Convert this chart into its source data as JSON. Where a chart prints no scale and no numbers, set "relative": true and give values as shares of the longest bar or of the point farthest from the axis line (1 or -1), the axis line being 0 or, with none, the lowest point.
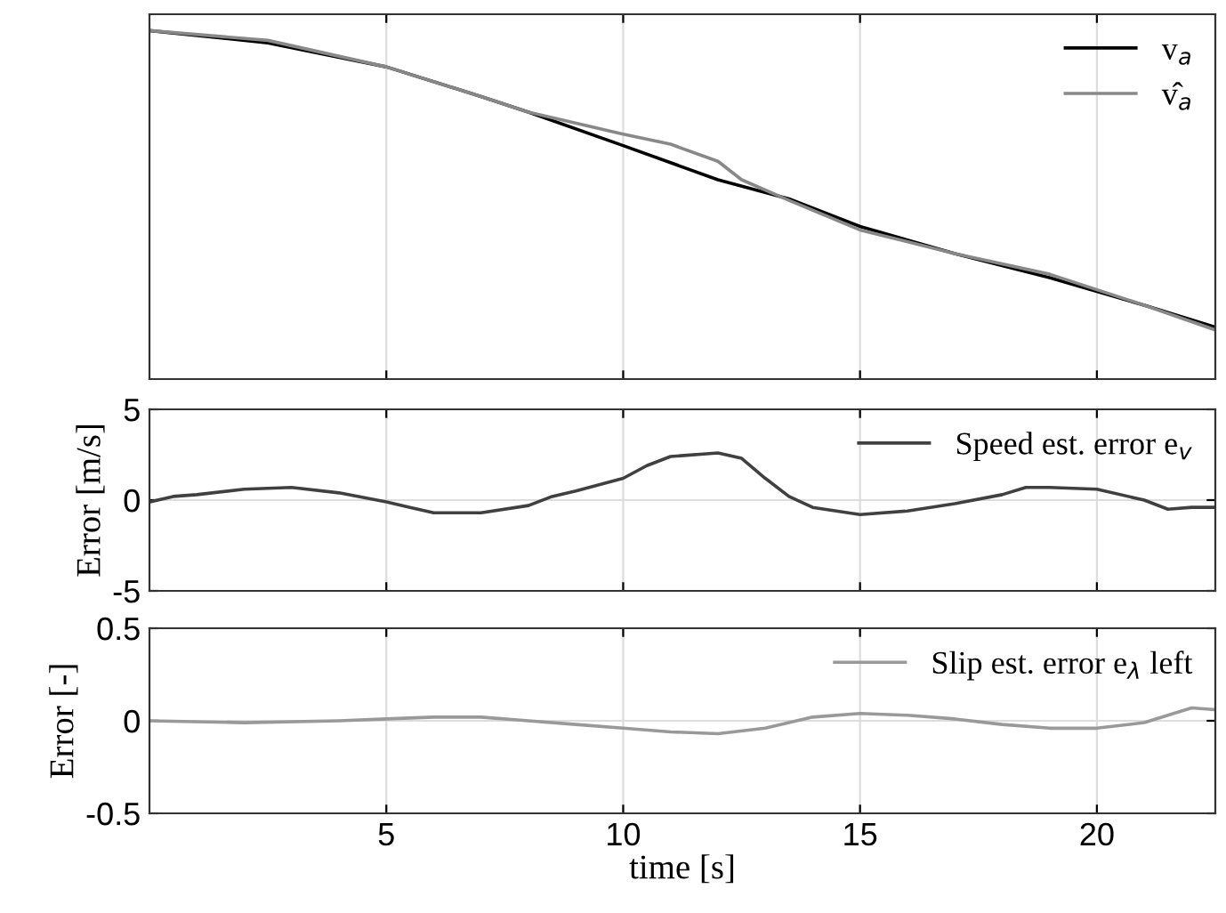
{
  "chart_data": [
    {
      "type": "line",
      "relative": true,
      "tick_labels": false,
      "grid": "x",
      "legend": "top right",
      "xlim": [
        0,
        22.5
      ],
      "xticks": [
        5,
        10,
        15,
        20
      ],
      "series": [
        {
          "name": "v$_{a}$",
          "color": "#000000",
          "x": [
            0,
            2.5,
            5,
            7,
            8,
            10,
            12,
            13.5,
            15,
            17,
            19,
            21,
            22.5
          ],
          "values": [
            1.0,
            0.965,
            0.896,
            0.811,
            0.766,
            0.67,
            0.572,
            0.517,
            0.438,
            0.36,
            0.291,
            0.212,
            0.149
          ]
        },
        {
          "name": "v̂$_{a}$",
          "color": "#888888",
          "x": [
            0,
            2.5,
            5,
            7,
            8,
            10,
            11,
            12,
            12.5,
            13.5,
            15,
            17,
            19,
            21,
            22.5
          ],
          "values": [
            1.0,
            0.972,
            0.896,
            0.811,
            0.766,
            0.703,
            0.674,
            0.625,
            0.572,
            0.513,
            0.428,
            0.36,
            0.301,
            0.212,
            0.141
          ]
        }
      ]
    },
    {
      "type": "line",
      "ylabel": "Error [m/s]",
      "tick_labels": "y",
      "grid": true,
      "legend": "top right",
      "xlim": [
        0,
        22.5
      ],
      "xticks": [
        5,
        10,
        15,
        20
      ],
      "ylim": [
        -5,
        5
      ],
      "yticks": [
        -5,
        0,
        5
      ],
      "series": [
        {
          "name": "Speed est. error e$_{v}$",
          "color": "#404040",
          "x": [
            0,
            0.5,
            1,
            2,
            3,
            4,
            5,
            5.5,
            6,
            7,
            8,
            8.5,
            9,
            10,
            10.5,
            11,
            12,
            12.5,
            13,
            13.5,
            14,
            15,
            16,
            17,
            18,
            18.5,
            19,
            20,
            21,
            21.5,
            22,
            22.5
          ],
          "values": [
            -0.1,
            0.2,
            0.3,
            0.6,
            0.7,
            0.4,
            -0.1,
            -0.4,
            -0.7,
            -0.7,
            -0.3,
            0.2,
            0.5,
            1.2,
            1.9,
            2.4,
            2.6,
            2.3,
            1.2,
            0.2,
            -0.4,
            -0.8,
            -0.6,
            -0.2,
            0.3,
            0.7,
            0.7,
            0.6,
            0.0,
            -0.5,
            -0.4,
            -0.4
          ]
        }
      ]
    },
    {
      "type": "line",
      "xlabel": "time [s]",
      "ylabel": "Error [-]",
      "grid": true,
      "legend": "top right",
      "xlim": [
        0,
        22.5
      ],
      "xticks": [
        5,
        10,
        15,
        20
      ],
      "ylim": [
        -0.5,
        0.5
      ],
      "yticks": [
        -0.5,
        0,
        0.5
      ],
      "series": [
        {
          "name": "Slip est. error e$_{λ}$ left",
          "color": "#999999",
          "x": [
            0,
            2,
            4,
            5,
            6,
            7,
            8,
            9,
            10,
            11,
            12,
            13,
            14,
            15,
            16,
            17,
            18,
            19,
            20,
            21,
            22,
            22.5
          ],
          "values": [
            0.0,
            -0.01,
            0.0,
            0.01,
            0.02,
            0.02,
            0.0,
            -0.02,
            -0.04,
            -0.06,
            -0.07,
            -0.04,
            0.02,
            0.04,
            0.03,
            0.01,
            -0.02,
            -0.04,
            -0.04,
            -0.01,
            0.07,
            0.06
          ]
        }
      ]
    }
  ]
}
